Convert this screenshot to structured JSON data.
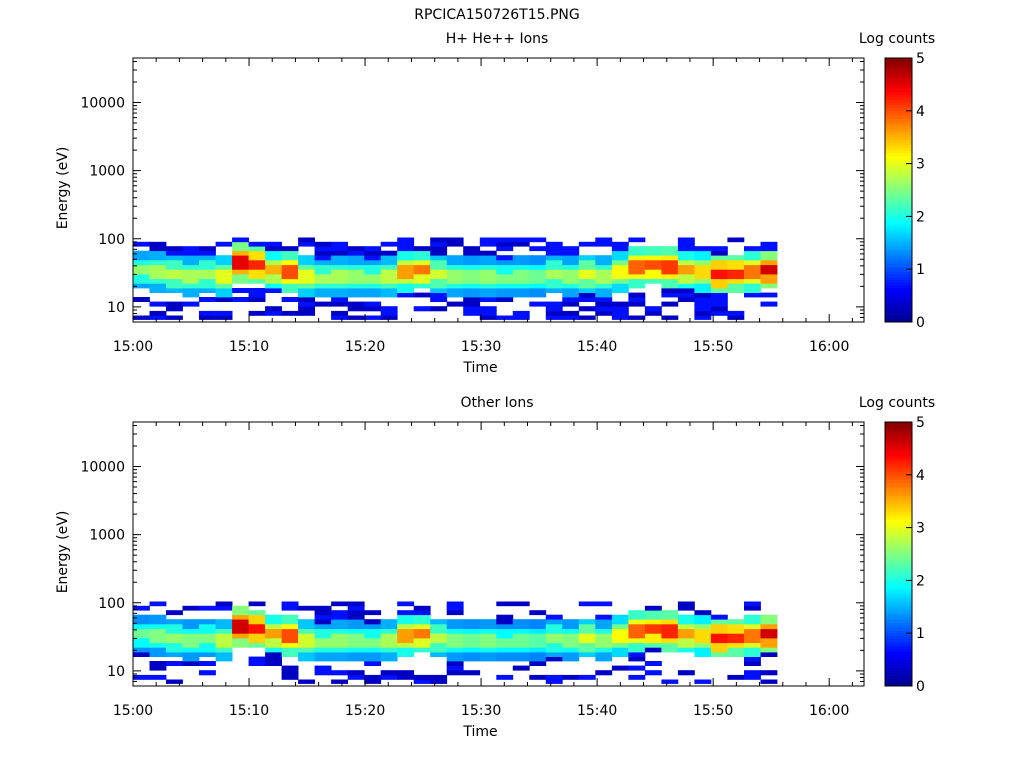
{
  "figure_title": "RPCICA150726T15.PNG",
  "colors": {
    "colormap": [
      "#00008f",
      "#0000ff",
      "#0080ff",
      "#00ffff",
      "#80ff80",
      "#ffff00",
      "#ff8000",
      "#ff0000",
      "#800000"
    ],
    "background": "#ffffff",
    "axis": "#000000"
  },
  "chart_data": [
    {
      "type": "heatmap",
      "title": "H+ He++ Ions",
      "xlabel": "Time",
      "ylabel": "Energy (eV)",
      "y_scale": "log",
      "ylim": [
        6,
        45000
      ],
      "x_ticks": [
        "15:00",
        "15:10",
        "15:20",
        "15:30",
        "15:40",
        "15:50",
        "16:00"
      ],
      "x_range_minutes": [
        0,
        63
      ],
      "y_ticks": [
        {
          "value": 10,
          "label": "10"
        },
        {
          "value": 100,
          "label": "100"
        },
        {
          "value": 1000,
          "label": "1000"
        },
        {
          "value": 10000,
          "label": "10000"
        }
      ],
      "colorbar": {
        "label": "Log counts",
        "min": 0,
        "max": 5,
        "ticks": [
          "0",
          "1",
          "2",
          "3",
          "4",
          "5"
        ]
      },
      "data_coverage_minutes": [
        0,
        55.5
      ],
      "energy_channels": [
        7,
        8,
        9.5,
        11,
        13,
        15,
        17.5,
        20.5,
        24,
        28,
        33,
        38.5,
        45,
        53,
        62,
        72,
        84,
        97
      ],
      "peak_energy_ev": [
        35,
        33,
        30,
        28,
        30,
        28,
        45,
        42,
        35,
        33,
        28,
        27,
        28,
        28,
        27,
        28,
        33,
        35,
        30,
        28,
        28,
        28,
        27,
        28,
        28,
        30,
        28,
        30,
        28,
        33,
        38,
        40,
        38,
        35,
        33,
        30,
        32,
        33,
        35
      ],
      "peak_log_counts": [
        2.6,
        2.7,
        2.8,
        2.7,
        2.7,
        3.0,
        4.5,
        4.2,
        3.5,
        4.0,
        3.0,
        2.7,
        2.7,
        2.6,
        2.6,
        2.8,
        3.6,
        3.8,
        2.9,
        2.6,
        2.5,
        2.6,
        2.5,
        2.5,
        2.4,
        2.7,
        2.6,
        3.0,
        2.7,
        3.1,
        3.9,
        4.0,
        4.1,
        3.6,
        3.3,
        4.3,
        4.2,
        3.8,
        4.6
      ],
      "sparse_fill_ratio": 0.5
    },
    {
      "type": "heatmap",
      "title": "Other Ions",
      "xlabel": "Time",
      "ylabel": "Energy (eV)",
      "y_scale": "log",
      "ylim": [
        6,
        45000
      ],
      "x_ticks": [
        "15:00",
        "15:10",
        "15:20",
        "15:30",
        "15:40",
        "15:50",
        "16:00"
      ],
      "x_range_minutes": [
        0,
        63
      ],
      "y_ticks": [
        {
          "value": 10,
          "label": "10"
        },
        {
          "value": 100,
          "label": "100"
        },
        {
          "value": 1000,
          "label": "1000"
        },
        {
          "value": 10000,
          "label": "10000"
        }
      ],
      "colorbar": {
        "label": "Log counts",
        "min": 0,
        "max": 5,
        "ticks": [
          "0",
          "1",
          "2",
          "3",
          "4",
          "5"
        ]
      },
      "data_coverage_minutes": [
        0,
        55.5
      ],
      "energy_channels": [
        7,
        8,
        9.5,
        11,
        13,
        15,
        17.5,
        20.5,
        24,
        28,
        33,
        38.5,
        45,
        53,
        62,
        72,
        84,
        97
      ],
      "peak_energy_ev": [
        35,
        33,
        30,
        28,
        30,
        28,
        45,
        42,
        35,
        33,
        28,
        27,
        28,
        28,
        27,
        28,
        33,
        35,
        30,
        28,
        28,
        28,
        27,
        28,
        28,
        30,
        28,
        30,
        28,
        33,
        38,
        40,
        38,
        35,
        33,
        30,
        32,
        33,
        35
      ],
      "peak_log_counts": [
        2.4,
        2.5,
        2.6,
        2.5,
        2.5,
        2.8,
        4.6,
        4.3,
        3.6,
        4.0,
        2.9,
        2.6,
        2.6,
        2.5,
        2.5,
        2.7,
        3.6,
        3.8,
        2.8,
        2.5,
        2.4,
        2.5,
        2.4,
        2.4,
        2.3,
        2.6,
        2.5,
        3.0,
        2.6,
        3.1,
        3.9,
        4.1,
        4.2,
        3.6,
        3.3,
        4.3,
        4.2,
        3.8,
        4.6
      ],
      "sparse_fill_ratio": 0.3
    }
  ]
}
